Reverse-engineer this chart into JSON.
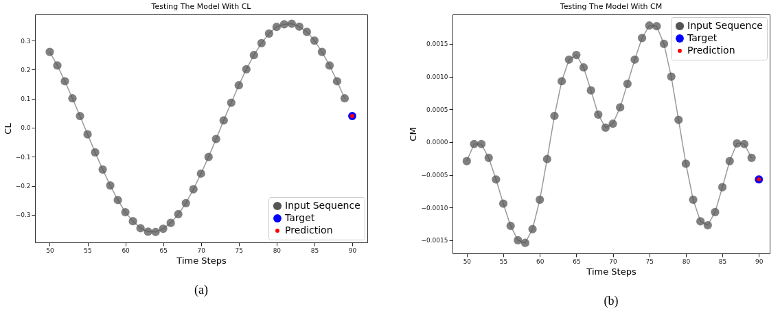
{
  "chart_data": [
    {
      "type": "line",
      "title": "Testing The Model With CL",
      "xlabel": "Time Steps",
      "ylabel": "CL",
      "annotations": [
        "(a)"
      ],
      "legend": "bottom right",
      "grid": false,
      "xlim": [
        48.05,
        92
      ],
      "ylim": [
        -0.395,
        0.39
      ],
      "xticks": [
        50,
        55,
        60,
        65,
        70,
        75,
        80,
        85,
        90
      ],
      "yticks": [
        {
          "value": -0.3,
          "label": "−0.3"
        },
        {
          "value": -0.2,
          "label": "−0.2"
        },
        {
          "value": -0.1,
          "label": "−0.1"
        },
        {
          "value": 0,
          "label": "0.0"
        },
        {
          "value": 0.1,
          "label": "0.1"
        },
        {
          "value": 0.2,
          "label": "0.2"
        },
        {
          "value": 0.3,
          "label": "0.3"
        }
      ],
      "series": [
        {
          "name": "Input Sequence",
          "marker": "circle",
          "color": "#555555",
          "x": [
            50,
            51,
            52,
            53,
            54,
            55,
            56,
            57,
            58,
            59,
            60,
            61,
            62,
            63,
            64,
            65,
            66,
            67,
            68,
            69,
            70,
            71,
            72,
            73,
            74,
            75,
            76,
            77,
            78,
            79,
            80,
            81,
            82,
            83,
            84,
            85,
            86,
            87,
            88,
            89
          ],
          "values": [
            0.261,
            0.214,
            0.16,
            0.101,
            0.04,
            -0.023,
            -0.085,
            -0.144,
            -0.199,
            -0.249,
            -0.291,
            -0.322,
            -0.346,
            -0.358,
            -0.359,
            -0.348,
            -0.328,
            -0.298,
            -0.26,
            -0.212,
            -0.158,
            -0.101,
            -0.039,
            0.025,
            0.086,
            0.146,
            0.201,
            0.25,
            0.291,
            0.324,
            0.347,
            0.356,
            0.358,
            0.348,
            0.33,
            0.3,
            0.261,
            0.214,
            0.16,
            0.101
          ]
        },
        {
          "name": "Target",
          "type": "scatter",
          "marker": "circle",
          "color": "#0000ff",
          "x": [
            90
          ],
          "values": [
            0.04
          ]
        },
        {
          "name": "Prediction",
          "type": "scatter",
          "marker": "circle",
          "color": "#ff0000",
          "x": [
            90
          ],
          "values": [
            0.04
          ]
        }
      ]
    },
    {
      "type": "line",
      "title": "Testing The Model With CM",
      "xlabel": "Time Steps",
      "ylabel": "CM",
      "annotations": [
        "(b)"
      ],
      "legend": "top right",
      "grid": false,
      "xlim": [
        48.04,
        91.48
      ],
      "ylim": [
        -0.0017,
        0.00195
      ],
      "xticks": [
        50,
        55,
        60,
        65,
        70,
        75,
        80,
        85,
        90
      ],
      "yticks": [
        {
          "value": -0.0015,
          "label": "−0.0015"
        },
        {
          "value": -0.001,
          "label": "−0.0010"
        },
        {
          "value": -0.0005,
          "label": "−0.0005"
        },
        {
          "value": 0,
          "label": "0.0000"
        },
        {
          "value": 0.0005,
          "label": "0.0005"
        },
        {
          "value": 0.001,
          "label": "0.0010"
        },
        {
          "value": 0.0015,
          "label": "0.0015"
        }
      ],
      "series": [
        {
          "name": "Input Sequence",
          "marker": "circle",
          "color": "#555555",
          "x": [
            50,
            51,
            52,
            53,
            54,
            55,
            56,
            57,
            58,
            59,
            60,
            61,
            62,
            63,
            64,
            65,
            66,
            67,
            68,
            69,
            70,
            71,
            72,
            73,
            74,
            75,
            76,
            77,
            78,
            79,
            80,
            81,
            82,
            83,
            84,
            85,
            86,
            87,
            88,
            89
          ],
          "values": [
            -0.00029,
            -3e-05,
            -3e-05,
            -0.00024,
            -0.00057,
            -0.00094,
            -0.00128,
            -0.0015,
            -0.00154,
            -0.00133,
            -0.00088,
            -0.00026,
            0.0004,
            0.00093,
            0.00126,
            0.00133,
            0.00114,
            0.00079,
            0.00042,
            0.00022,
            0.00028,
            0.00053,
            0.00089,
            0.00126,
            0.00159,
            0.00178,
            0.00177,
            0.0015,
            0.001,
            0.00034,
            -0.00033,
            -0.00088,
            -0.00121,
            -0.00127,
            -0.00107,
            -0.00069,
            -0.00029,
            -2e-05,
            -3e-05,
            -0.00024
          ]
        },
        {
          "name": "Target",
          "type": "scatter",
          "marker": "circle",
          "color": "#0000ff",
          "x": [
            90
          ],
          "values": [
            -0.00057
          ]
        },
        {
          "name": "Prediction",
          "type": "scatter",
          "marker": "circle",
          "color": "#ff0000",
          "x": [
            90
          ],
          "values": [
            -0.00057
          ]
        }
      ]
    }
  ]
}
